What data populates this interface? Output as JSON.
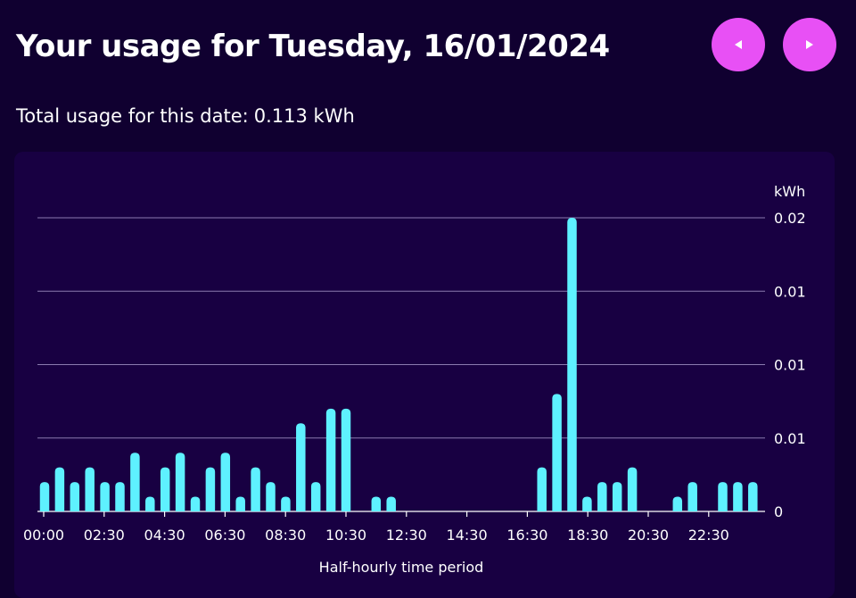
{
  "header": {
    "title": "Your usage for Tuesday, 16/01/2024",
    "prev_icon": "triangle-left-icon",
    "next_icon": "triangle-right-icon"
  },
  "summary": {
    "label": "Total usage for this date:",
    "value": "0.113 kWh"
  },
  "colors": {
    "background": "#100030",
    "card": "#180042",
    "bar": "#5ef1ff",
    "button": "#e850f5",
    "grid": "#8a7ab0"
  },
  "chart_data": {
    "type": "bar",
    "ylabel": "kWh",
    "xlabel": "Half-hourly time period",
    "ylim": [
      0,
      0.02
    ],
    "ytick_labels": [
      "0",
      "0.01",
      "0.01",
      "0.01",
      "0.02"
    ],
    "xtick_labels": [
      "00:00",
      "02:30",
      "04:30",
      "06:30",
      "08:30",
      "10:30",
      "12:30",
      "14:30",
      "16:30",
      "18:30",
      "20:30",
      "22:30"
    ],
    "grid": true,
    "categories": [
      "00:00",
      "00:30",
      "01:00",
      "01:30",
      "02:00",
      "02:30",
      "03:00",
      "03:30",
      "04:00",
      "04:30",
      "05:00",
      "05:30",
      "06:00",
      "06:30",
      "07:00",
      "07:30",
      "08:00",
      "08:30",
      "09:00",
      "09:30",
      "10:00",
      "10:30",
      "11:00",
      "11:30",
      "12:00",
      "12:30",
      "13:00",
      "13:30",
      "14:00",
      "14:30",
      "15:00",
      "15:30",
      "16:00",
      "16:30",
      "17:00",
      "17:30",
      "18:00",
      "18:30",
      "19:00",
      "19:30",
      "20:00",
      "20:30",
      "21:00",
      "21:30",
      "22:00",
      "22:30",
      "23:00",
      "23:30"
    ],
    "values": [
      0.002,
      0.003,
      0.002,
      0.003,
      0.002,
      0.002,
      0.004,
      0.001,
      0.003,
      0.004,
      0.001,
      0.003,
      0.004,
      0.001,
      0.003,
      0.002,
      0.001,
      0.006,
      0.002,
      0.007,
      0.007,
      0,
      0.001,
      0.001,
      0,
      0,
      0,
      0,
      0,
      0,
      0,
      0,
      0,
      0.003,
      0.008,
      0.02,
      0.001,
      0.002,
      0.002,
      0.003,
      0,
      0,
      0.001,
      0.002,
      0,
      0.002,
      0.002,
      0.002
    ]
  }
}
